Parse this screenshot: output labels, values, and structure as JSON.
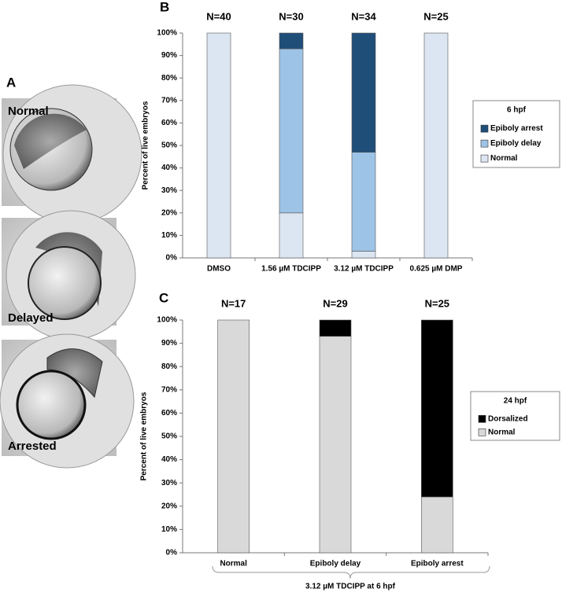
{
  "panel_a": {
    "label": "A",
    "images": [
      "Normal",
      "Delayed",
      "Arrested"
    ]
  },
  "chart_data": [
    {
      "type": "bar",
      "panel": "B",
      "stacked": true,
      "ylabel": "Percent of live embryos",
      "categories": [
        "DMSO",
        "1.56 µM TDCIPP",
        "3.12 µM TDCIPP",
        "0.625 µM DMP"
      ],
      "annotations": [
        "N=40",
        "N=30",
        "N=34",
        "N=25"
      ],
      "series": [
        {
          "name": "Normal",
          "color": "#dce6f2",
          "values": [
            100,
            20,
            3,
            100
          ]
        },
        {
          "name": "Epiboly delay",
          "color": "#9dc3e6",
          "values": [
            0,
            73,
            44,
            0
          ]
        },
        {
          "name": "Epiboly arrest",
          "color": "#1f4e79",
          "values": [
            0,
            7,
            53,
            0
          ]
        }
      ],
      "legend_title": "6 hpf",
      "legend": "right",
      "ylim": [
        0,
        100
      ],
      "yticks": [
        {
          "value": 0,
          "label": "0%"
        },
        {
          "value": 10,
          "label": "10%"
        },
        {
          "value": 20,
          "label": "20%"
        },
        {
          "value": 30,
          "label": "30%"
        },
        {
          "value": 40,
          "label": "40%"
        },
        {
          "value": 50,
          "label": "50%"
        },
        {
          "value": 60,
          "label": "60%"
        },
        {
          "value": 70,
          "label": "70%"
        },
        {
          "value": 80,
          "label": "80%"
        },
        {
          "value": 90,
          "label": "90%"
        },
        {
          "value": 100,
          "label": "100%"
        }
      ],
      "grid": false
    },
    {
      "type": "bar",
      "panel": "C",
      "stacked": true,
      "ylabel": "Percent of live embryos",
      "xlabel": "3.12 µM TDCIPP at 6 hpf",
      "categories": [
        "Normal",
        "Epiboly delay",
        "Epiboly arrest"
      ],
      "annotations": [
        "N=17",
        "N=29",
        "N=25"
      ],
      "series": [
        {
          "name": "Normal",
          "color": "#d9d9d9",
          "values": [
            100,
            93,
            24
          ]
        },
        {
          "name": "Dorsalized",
          "color": "#000000",
          "values": [
            0,
            7,
            76
          ]
        }
      ],
      "legend_title": "24 hpf",
      "legend": "right",
      "ylim": [
        0,
        100
      ],
      "yticks": [
        {
          "value": 0,
          "label": "0%"
        },
        {
          "value": 10,
          "label": "10%"
        },
        {
          "value": 20,
          "label": "20%"
        },
        {
          "value": 30,
          "label": "30%"
        },
        {
          "value": 40,
          "label": "40%"
        },
        {
          "value": 50,
          "label": "50%"
        },
        {
          "value": 60,
          "label": "60%"
        },
        {
          "value": 70,
          "label": "70%"
        },
        {
          "value": 80,
          "label": "80%"
        },
        {
          "value": 90,
          "label": "90%"
        },
        {
          "value": 100,
          "label": "100%"
        }
      ],
      "grid": false
    }
  ]
}
